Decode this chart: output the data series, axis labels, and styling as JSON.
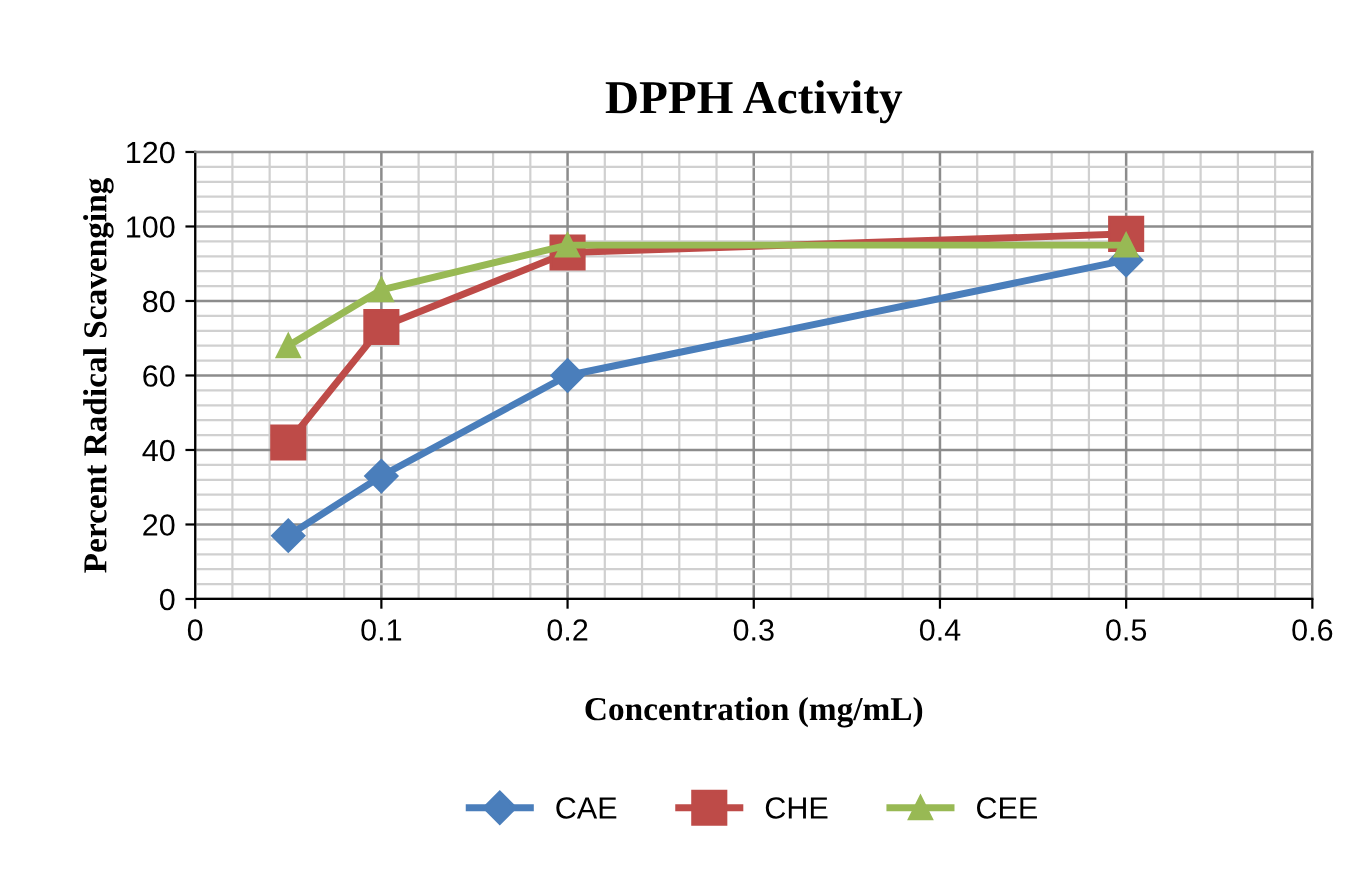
{
  "chart_data": {
    "type": "line",
    "title": "DPPH Activity",
    "xlabel": "Concentration (mg/mL)",
    "ylabel": "Percent Radical Scavenging",
    "x": [
      0.05,
      0.1,
      0.2,
      0.5
    ],
    "series": [
      {
        "name": "CAE",
        "color": "#4a7ebb",
        "marker": "diamond",
        "values": [
          17,
          33,
          60,
          91
        ]
      },
      {
        "name": "CHE",
        "color": "#be4b48",
        "marker": "square",
        "values": [
          42,
          73,
          93,
          98
        ]
      },
      {
        "name": "CEE",
        "color": "#98b954",
        "marker": "triangle",
        "values": [
          68,
          83,
          95,
          95
        ]
      }
    ],
    "xlim": [
      0,
      0.6
    ],
    "xticks": [
      0,
      0.1,
      0.2,
      0.3,
      0.4,
      0.5,
      0.6
    ],
    "ylim": [
      0,
      120
    ],
    "yticks": [
      0,
      20,
      40,
      60,
      80,
      100,
      120
    ],
    "grid": true,
    "legend": "bottom",
    "line_style": "solid"
  }
}
